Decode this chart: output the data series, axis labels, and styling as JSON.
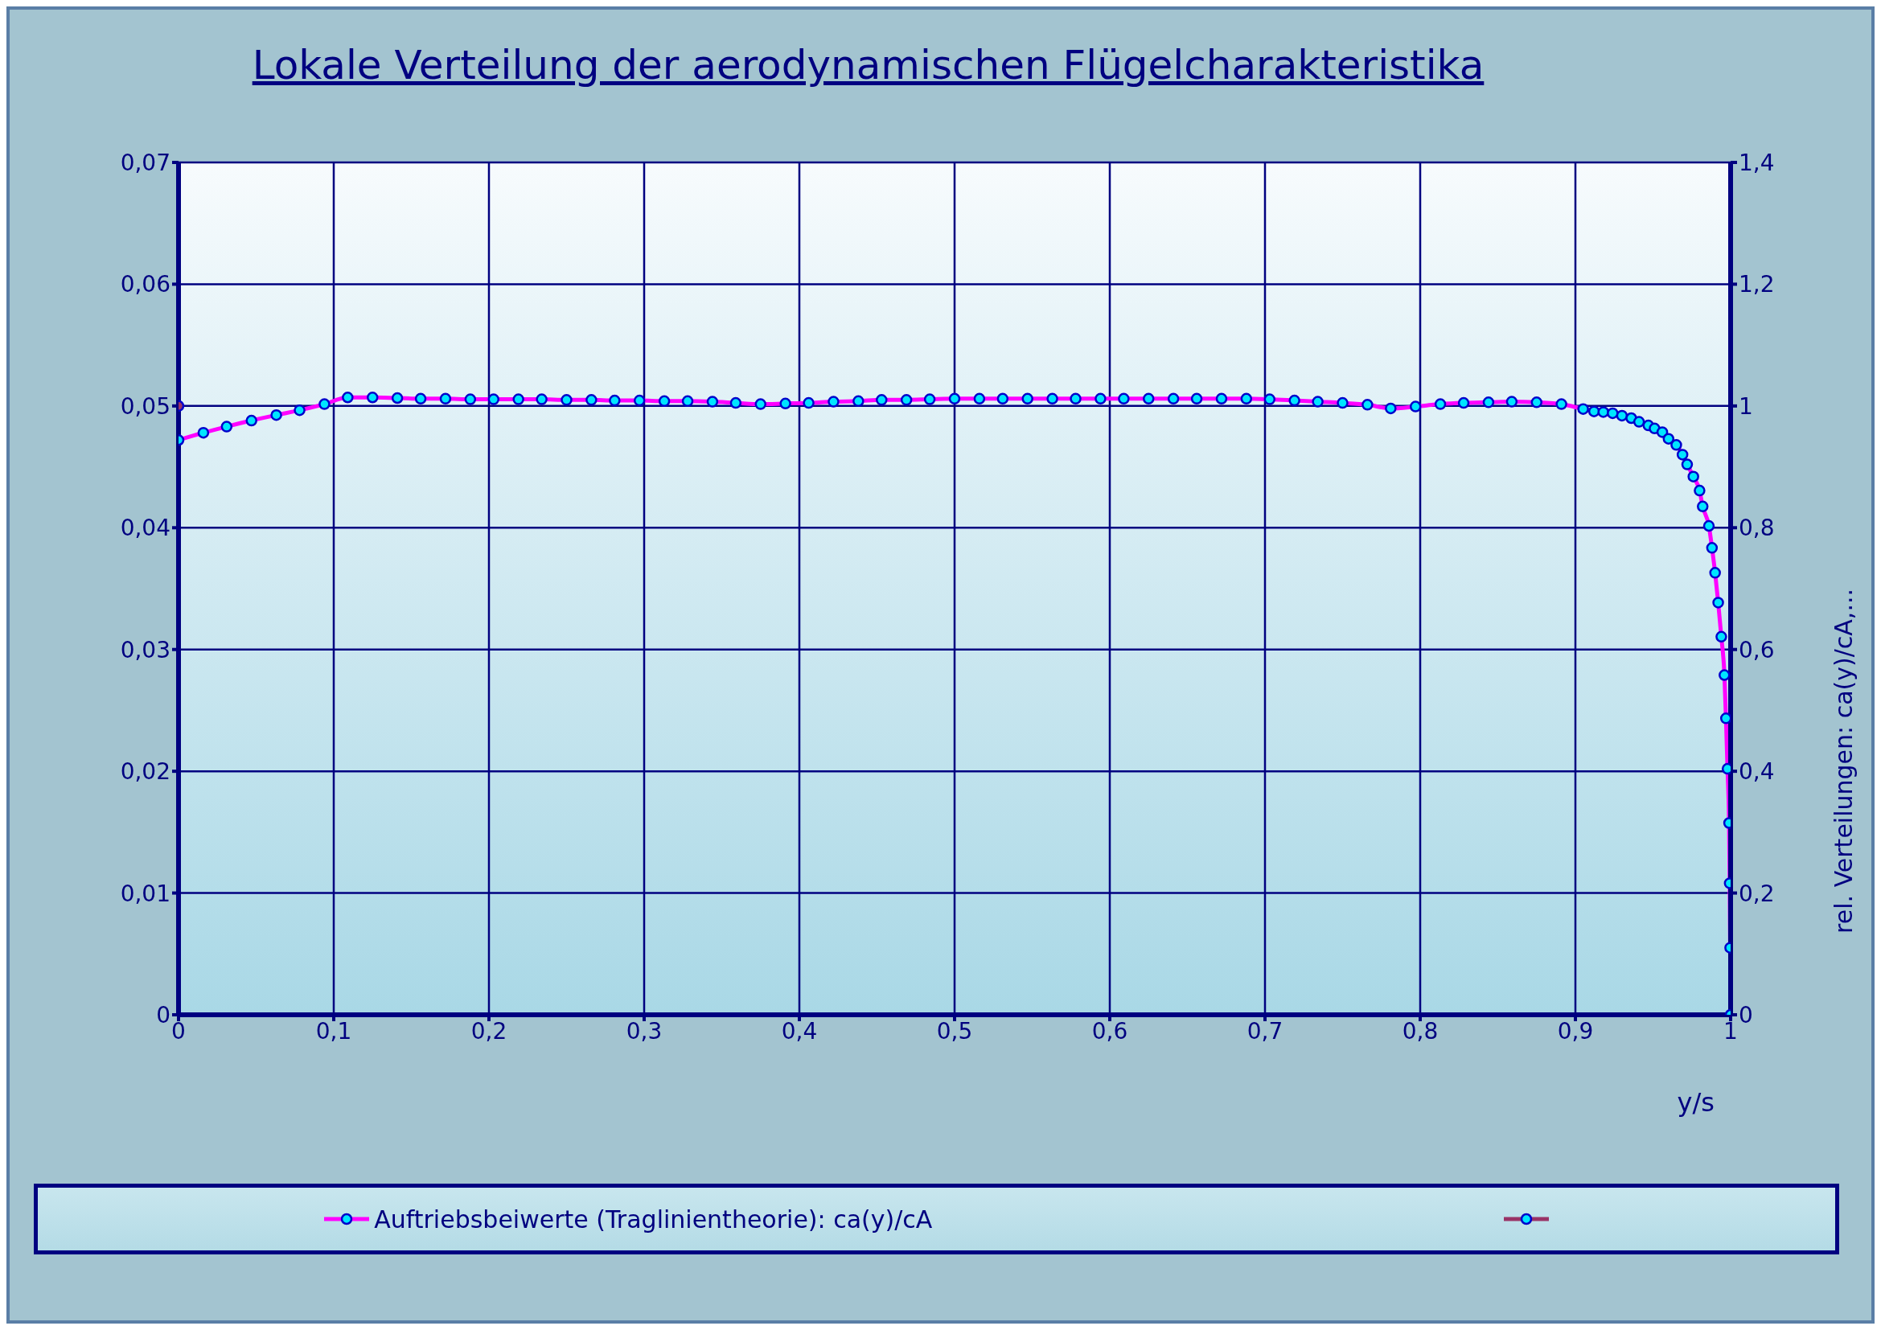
{
  "chart_data": {
    "type": "line",
    "title": "Lokale Verteilung der aerodynamischen Flügelcharakteristika",
    "xlabel": "y/s",
    "y2label": "rel. Verteilungen: ca(y)/cA,...",
    "xlim": [
      0,
      1
    ],
    "xticks": [
      {
        "value": 0,
        "label": "0"
      },
      {
        "value": 0.1,
        "label": "0,1"
      },
      {
        "value": 0.2,
        "label": "0,2"
      },
      {
        "value": 0.3,
        "label": "0,3"
      },
      {
        "value": 0.4,
        "label": "0,4"
      },
      {
        "value": 0.5,
        "label": "0,5"
      },
      {
        "value": 0.6,
        "label": "0,6"
      },
      {
        "value": 0.7,
        "label": "0,7"
      },
      {
        "value": 0.8,
        "label": "0,8"
      },
      {
        "value": 0.9,
        "label": "0,9"
      },
      {
        "value": 1,
        "label": "1"
      }
    ],
    "ylim": [
      0,
      0.07
    ],
    "yticks": [
      {
        "value": 0,
        "label": "0"
      },
      {
        "value": 0.01,
        "label": "0,01"
      },
      {
        "value": 0.02,
        "label": "0,02"
      },
      {
        "value": 0.03,
        "label": "0,03"
      },
      {
        "value": 0.04,
        "label": "0,04"
      },
      {
        "value": 0.05,
        "label": "0,05"
      },
      {
        "value": 0.06,
        "label": "0,06"
      },
      {
        "value": 0.07,
        "label": "0,07"
      }
    ],
    "y2lim": [
      0,
      1.4
    ],
    "y2ticks": [
      0,
      {
        "value": 0.2,
        "label": "0,2"
      },
      {
        "value": 0.4,
        "label": "0,4"
      },
      {
        "value": 0.6,
        "label": "0,6"
      },
      {
        "value": 0.8,
        "label": "0,8"
      },
      1,
      {
        "value": 1.2,
        "label": "1,2"
      },
      {
        "value": 1.4,
        "label": "1,4"
      }
    ],
    "grid": true,
    "legend": "bottom",
    "marker": "circle",
    "line_style": "solid",
    "series": [
      {
        "name": "Auftriebsbeiwerte (Traglinientheorie): ca(y)/cA",
        "color": "#ff00ff",
        "axis": "y2",
        "x": [
          0,
          0.016,
          0.031,
          0.047,
          0.063,
          0.078,
          0.094,
          0.109,
          0.125,
          0.141,
          0.156,
          0.172,
          0.188,
          0.203,
          0.219,
          0.234,
          0.25,
          0.266,
          0.281,
          0.297,
          0.313,
          0.328,
          0.344,
          0.359,
          0.375,
          0.391,
          0.406,
          0.422,
          0.438,
          0.453,
          0.469,
          0.484,
          0.5,
          0.516,
          0.531,
          0.547,
          0.563,
          0.578,
          0.594,
          0.609,
          0.625,
          0.641,
          0.656,
          0.672,
          0.688,
          0.703,
          0.719,
          0.734,
          0.75,
          0.766,
          0.781,
          0.797,
          0.813,
          0.828,
          0.844,
          0.859,
          0.875,
          0.891,
          0.905,
          0.912,
          0.918,
          0.924,
          0.93,
          0.936,
          0.941,
          0.947,
          0.951,
          0.956,
          0.96,
          0.965,
          0.969,
          0.972,
          0.976,
          0.98,
          0.982,
          0.986,
          0.988,
          0.99,
          0.992,
          0.994,
          0.996,
          0.997,
          0.998,
          0.999,
          0.9994,
          0.9997,
          1
        ],
        "values": [
          0.944,
          0.956,
          0.966,
          0.976,
          0.985,
          0.993,
          1.003,
          1.014,
          1.014,
          1.013,
          1.012,
          1.012,
          1.011,
          1.011,
          1.011,
          1.011,
          1.01,
          1.01,
          1.009,
          1.009,
          1.008,
          1.008,
          1.007,
          1.005,
          1.003,
          1.004,
          1.005,
          1.007,
          1.008,
          1.01,
          1.01,
          1.011,
          1.012,
          1.012,
          1.012,
          1.012,
          1.012,
          1.012,
          1.012,
          1.012,
          1.012,
          1.012,
          1.012,
          1.012,
          1.012,
          1.011,
          1.009,
          1.007,
          1.005,
          1.002,
          0.996,
          0.999,
          1.003,
          1.005,
          1.006,
          1.007,
          1.006,
          1.003,
          0.995,
          0.991,
          0.99,
          0.988,
          0.984,
          0.98,
          0.974,
          0.968,
          0.963,
          0.957,
          0.946,
          0.936,
          0.92,
          0.904,
          0.884,
          0.861,
          0.835,
          0.803,
          0.767,
          0.726,
          0.677,
          0.621,
          0.558,
          0.487,
          0.404,
          0.315,
          0.216,
          0.11,
          0
        ]
      },
      {
        "color": "#993366",
        "axis": "y",
        "x": [
          0
        ],
        "values": [
          0.05
        ]
      }
    ]
  }
}
